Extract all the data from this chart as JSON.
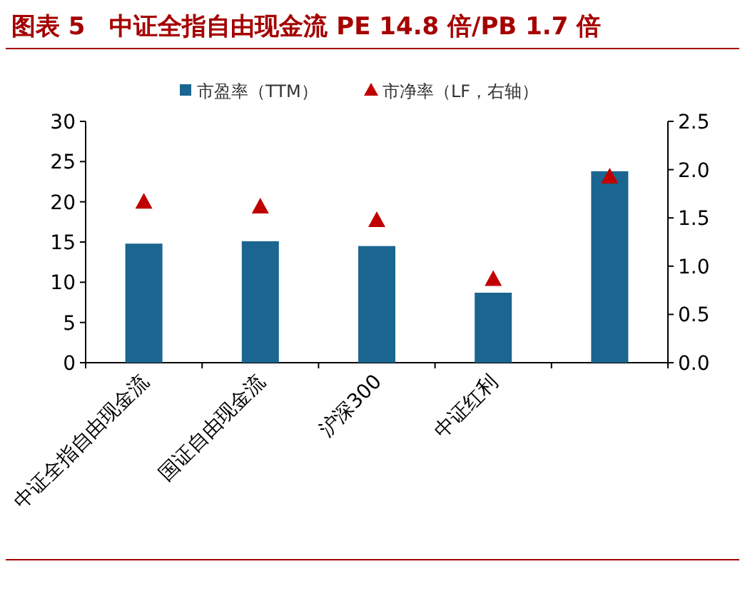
{
  "chart_data": {
    "type": "bar",
    "title": "图表 5　中证全指自由现金流 PE 14.8 倍/PB 1.7 倍",
    "categories": [
      "中证全指自由现金流",
      "国证自由现金流",
      "沪深300",
      "中证红利",
      null
    ],
    "series": [
      {
        "name": "市盈率（TTM）",
        "color": "#1a6690",
        "values": [
          14.8,
          15.1,
          14.5,
          8.7,
          23.8
        ]
      },
      {
        "name": "市净率（LF，右轴）",
        "type": "scatter",
        "axis": "y2",
        "marker": "triangle",
        "color": "#c00000",
        "values": [
          1.67,
          1.62,
          1.48,
          0.87,
          1.93
        ]
      }
    ],
    "ylim": [
      0,
      30
    ],
    "yticks": [
      0,
      5,
      10,
      15,
      20,
      25,
      30
    ],
    "y2lim": [
      0,
      2.5
    ],
    "y2ticks": [
      {
        "value": 0,
        "label": "0.0"
      },
      {
        "value": 0.5,
        "label": "0.5"
      },
      {
        "value": 1,
        "label": "1.0"
      },
      {
        "value": 1.5,
        "label": "1.5"
      },
      {
        "value": 2,
        "label": "2.0"
      },
      {
        "value": 2.5,
        "label": "2.5"
      }
    ],
    "legend": "top",
    "grid": false
  }
}
